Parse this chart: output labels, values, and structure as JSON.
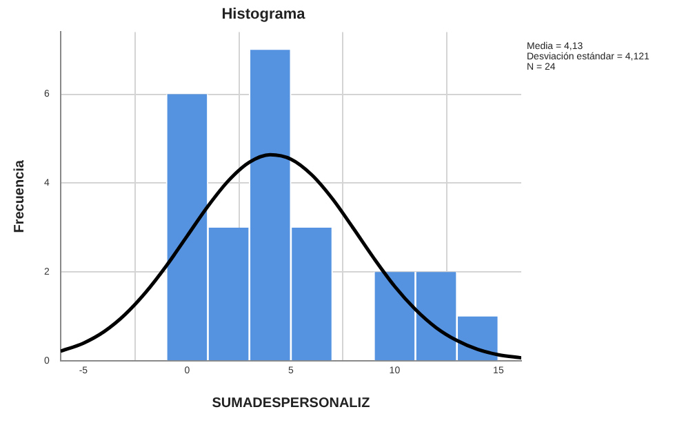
{
  "chart_data": {
    "type": "histogram",
    "title": "Histograma",
    "xlabel": "SUMADESPERSONALIZ",
    "ylabel": "Frecuencia",
    "annotations": [
      "Media = 4,13",
      "Desviación estándar = 4,121",
      "N = 24"
    ],
    "series": [
      {
        "bins": [
          -1,
          1,
          3,
          5,
          7,
          9,
          11,
          13,
          15
        ],
        "values": [
          6,
          3,
          7,
          3,
          0,
          2,
          2,
          1
        ],
        "color": "#5593e0"
      },
      {
        "type": "line",
        "color": "#000000",
        "x": [
          -6.1,
          -5,
          -4,
          -3,
          -2,
          -1,
          0,
          1,
          2,
          3,
          4,
          5,
          6,
          7,
          8,
          9,
          10,
          11,
          12,
          13,
          14,
          15,
          16.1
        ],
        "values": [
          0.22,
          0.4,
          0.66,
          1.04,
          1.54,
          2.14,
          2.81,
          3.48,
          4.06,
          4.47,
          4.64,
          4.54,
          4.19,
          3.65,
          2.99,
          2.31,
          1.68,
          1.16,
          0.75,
          0.46,
          0.26,
          0.14,
          0.07
        ]
      }
    ],
    "xlim": [
      -6.1,
      16.1
    ],
    "xticks": [
      -5,
      0,
      5,
      10,
      15
    ],
    "ylim": [
      0,
      7.4
    ],
    "yticks": [
      0,
      2,
      4,
      6
    ],
    "grid": true,
    "legend": false,
    "marker": "none"
  }
}
